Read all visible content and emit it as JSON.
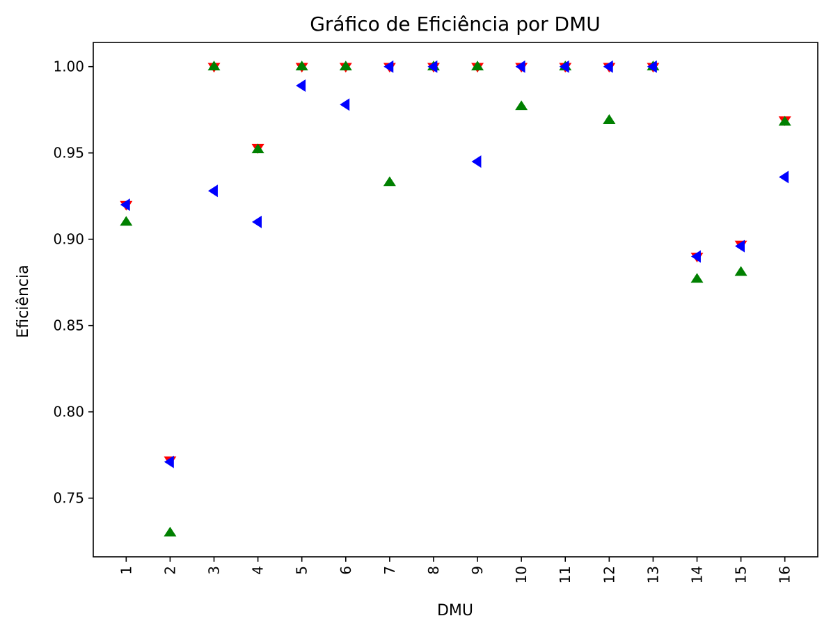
{
  "chart_data": {
    "type": "scatter",
    "title": "Gráfico de Eficiência por DMU",
    "xlabel": "DMU",
    "ylabel": "Eficiência",
    "x": [
      "1",
      "2",
      "3",
      "4",
      "5",
      "6",
      "7",
      "8",
      "9",
      "10",
      "11",
      "12",
      "13",
      "14",
      "15",
      "16"
    ],
    "ylim": [
      0.716,
      1.014
    ],
    "yticks": [
      0.75,
      0.8,
      0.85,
      0.9,
      0.95,
      1.0
    ],
    "ytick_labels": [
      "0.75",
      "0.80",
      "0.85",
      "0.90",
      "0.95",
      "1.00"
    ],
    "xtick_rotation": "vertical",
    "grid": false,
    "legend": "none",
    "series": [
      {
        "marker": "triangle-down",
        "color": "#ff0000",
        "values": [
          0.92,
          0.772,
          1.0,
          0.953,
          1.0,
          1.0,
          1.0,
          1.0,
          1.0,
          1.0,
          1.0,
          1.0,
          1.0,
          0.89,
          0.897,
          0.969
        ]
      },
      {
        "marker": "triangle-up",
        "color": "#008000",
        "values": [
          0.91,
          0.73,
          1.0,
          0.952,
          1.0,
          1.0,
          0.933,
          1.0,
          1.0,
          0.977,
          1.0,
          0.969,
          1.0,
          0.877,
          0.881,
          0.968
        ]
      },
      {
        "marker": "triangle-left",
        "color": "#0000ff",
        "values": [
          0.92,
          0.771,
          0.928,
          0.91,
          0.989,
          0.978,
          1.0,
          1.0,
          0.945,
          1.0,
          1.0,
          1.0,
          1.0,
          0.89,
          0.896,
          0.936
        ]
      }
    ]
  }
}
